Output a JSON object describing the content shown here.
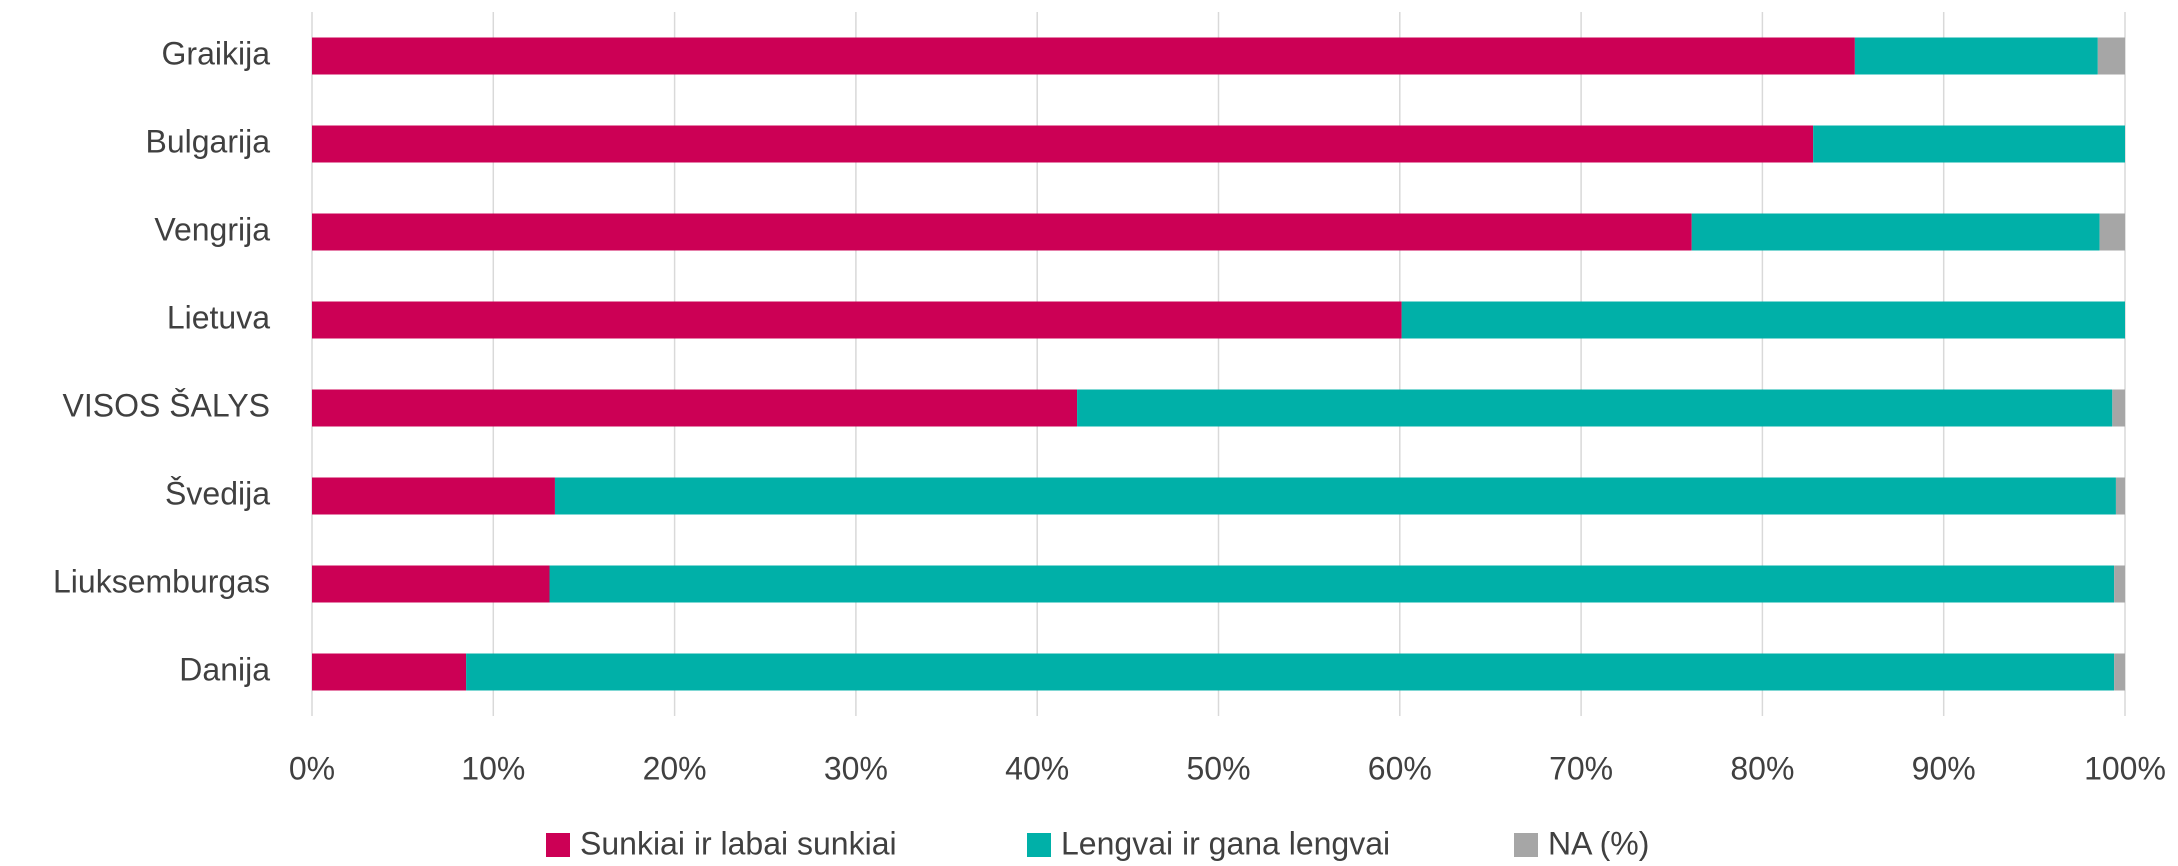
{
  "chart_data": {
    "type": "stacked_barh",
    "categories": [
      "Graikija",
      "Bulgarija",
      "Vengrija",
      "Lietuva",
      "VISOS ŠALYS",
      "Švedija",
      "Liuksemburgas",
      "Danija"
    ],
    "series": [
      {
        "name": "Sunkiai ir labai sunkiai",
        "color": "#cc0055",
        "values": [
          85.1,
          82.8,
          76.1,
          60.1,
          42.2,
          13.4,
          13.1,
          8.5
        ]
      },
      {
        "name": "Lengvai ir gana lengvai",
        "color": "#00b0a8",
        "values": [
          13.4,
          17.2,
          22.5,
          39.9,
          57.1,
          86.1,
          86.3,
          90.9
        ]
      },
      {
        "name": "NA (%)",
        "color": "#a6a6a6",
        "values": [
          1.5,
          0,
          1.4,
          0,
          0.7,
          0.5,
          0.6,
          0.6
        ]
      }
    ],
    "xlim": [
      0,
      100
    ],
    "xticks": [
      {
        "value": 0,
        "label": "0%"
      },
      {
        "value": 10,
        "label": "10%"
      },
      {
        "value": 20,
        "label": "20%"
      },
      {
        "value": 30,
        "label": "30%"
      },
      {
        "value": 40,
        "label": "40%"
      },
      {
        "value": 50,
        "label": "50%"
      },
      {
        "value": 60,
        "label": "60%"
      },
      {
        "value": 70,
        "label": "70%"
      },
      {
        "value": 80,
        "label": "80%"
      },
      {
        "value": 90,
        "label": "90%"
      },
      {
        "value": 100,
        "label": "100%"
      }
    ],
    "grid": true,
    "legend": "bottom"
  }
}
